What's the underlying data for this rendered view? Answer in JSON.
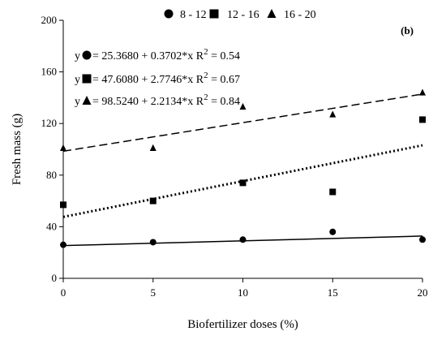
{
  "chart_data": {
    "type": "scatter",
    "panel_label": "(b)",
    "xlabel": "Biofertilizer doses (%)",
    "ylabel": "Fresh mass (g)",
    "xlim": [
      0,
      20
    ],
    "ylim": [
      0,
      200
    ],
    "x_ticks": [
      "0",
      "5",
      "10",
      "15",
      "20"
    ],
    "y_ticks": [
      "0",
      "40",
      "80",
      "120",
      "160",
      "200"
    ],
    "grid": false,
    "legend_position": "top",
    "series": [
      {
        "name": "8 - 12",
        "marker": "circle",
        "line_style": "solid",
        "x": [
          0,
          5,
          10,
          15,
          20
        ],
        "y": [
          26,
          28,
          30,
          36,
          30
        ],
        "fit": {
          "intercept": 25.368,
          "slope": 0.3702
        },
        "equation": {
          "lhs": "y",
          "rhs": " = 25.3680 + 0.3702*x R",
          "exp": "2",
          "tail": " = 0.54"
        }
      },
      {
        "name": "12 - 16",
        "marker": "square",
        "line_style": "dotted",
        "x": [
          0,
          5,
          10,
          15,
          20
        ],
        "y": [
          57,
          60,
          74,
          67,
          123
        ],
        "fit": {
          "intercept": 47.608,
          "slope": 2.7746
        },
        "equation": {
          "lhs": "y",
          "rhs": " = 47.6080 + 2.7746*x R",
          "exp": "2",
          "tail": " = 0.67"
        }
      },
      {
        "name": "16 - 20",
        "marker": "triangle",
        "line_style": "dashed",
        "x": [
          0,
          5,
          10,
          15,
          20
        ],
        "y": [
          101,
          101,
          133,
          127,
          144
        ],
        "fit": {
          "intercept": 98.524,
          "slope": 2.2134
        },
        "equation": {
          "lhs": "y",
          "rhs": " = 98.5240 + 2.2134*x R",
          "exp": "2",
          "tail": " = 0.84"
        }
      }
    ],
    "colors": {
      "ink": "#000000",
      "background": "#ffffff"
    }
  }
}
